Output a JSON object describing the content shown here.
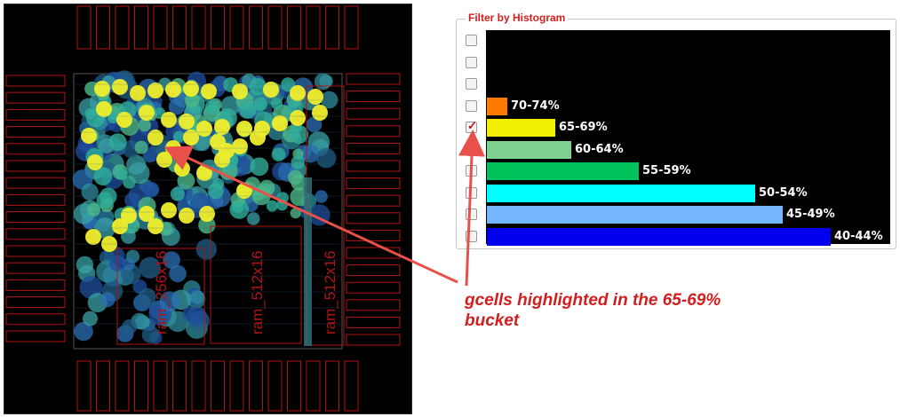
{
  "histogram": {
    "title": "Filter by Histogram",
    "bins": [
      {
        "label": "",
        "value": 0,
        "color": "#000000",
        "checked": false
      },
      {
        "label": "",
        "value": 0,
        "color": "#000000",
        "checked": false
      },
      {
        "label": "",
        "value": 0,
        "color": "#000000",
        "checked": false
      },
      {
        "label": "70-74%",
        "value": 0.05,
        "color": "#ff7a00",
        "checked": false
      },
      {
        "label": "65-69%",
        "value": 0.17,
        "color": "#f2ee00",
        "checked": true
      },
      {
        "label": "60-64%",
        "value": 0.21,
        "color": "#7fd18f",
        "checked": false
      },
      {
        "label": "55-59%",
        "value": 0.38,
        "color": "#00c25a",
        "checked": false
      },
      {
        "label": "50-54%",
        "value": 0.67,
        "color": "#00ffff",
        "checked": false
      },
      {
        "label": "45-49%",
        "value": 0.74,
        "color": "#75b7ff",
        "checked": false
      },
      {
        "label": "40-44%",
        "value": 0.86,
        "color": "#0000ee",
        "checked": false
      }
    ]
  },
  "annotation": {
    "line1": "gcells highlighted in the 65-69%",
    "line2": "bucket",
    "color": "#e53935"
  },
  "layout": {
    "rams": [
      "ram_256x16",
      "ram_512x16",
      "ram_512x16"
    ]
  }
}
